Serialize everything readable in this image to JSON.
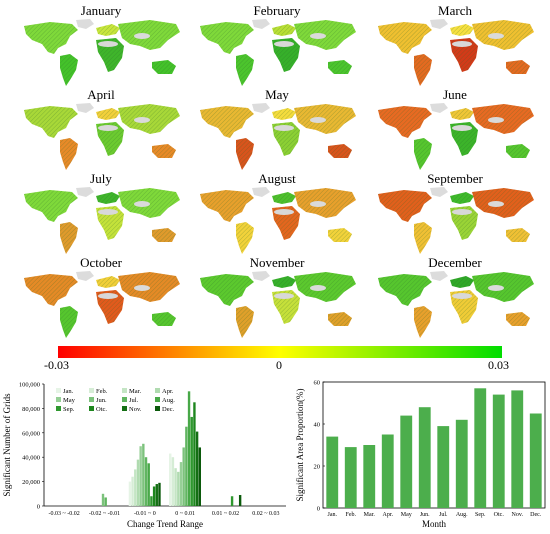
{
  "maps": {
    "months": [
      "January",
      "February",
      "March",
      "April",
      "May",
      "June",
      "July",
      "August",
      "September",
      "October",
      "November",
      "December"
    ],
    "colorbar": {
      "min_label": "-0.03",
      "mid_label": "0",
      "max_label": "0.03",
      "colors": [
        "#ff0000",
        "#ffff00",
        "#00dd00"
      ]
    }
  },
  "chart_data": [
    {
      "type": "bar",
      "xlabel": "Change Trend Range",
      "ylabel": "Significant Number of Grids",
      "ylim": [
        0,
        100000
      ],
      "yticks": [
        "0",
        "20,000",
        "40,000",
        "60,000",
        "80,000",
        "100,000"
      ],
      "xticks": [
        "-0.03 ~ -0.02",
        "-0.02 ~ -0.01",
        "-0.01 ~ 0",
        "0 ~ 0.01",
        "0.01 ~ 0.02",
        "0.02 ~ 0.03"
      ],
      "categories": [
        "-0.03 ~ -0.02",
        "-0.02 ~ -0.01",
        "-0.01 ~ 0",
        "0 ~ 0.01",
        "0.01 ~ 0.02",
        "0.02 ~ 0.03"
      ],
      "legend": [
        "Jan.",
        "Feb.",
        "Mar.",
        "Apr.",
        "May",
        "Jun.",
        "Jul.",
        "Aug.",
        "Sep.",
        "Otc.",
        "Nov.",
        "Dec."
      ],
      "legend_position": "top-left",
      "series": [
        {
          "name": "Jan.",
          "values": [
            0,
            0,
            20000,
            43000,
            0,
            0
          ]
        },
        {
          "name": "Feb.",
          "values": [
            0,
            0,
            24000,
            40000,
            0,
            0
          ]
        },
        {
          "name": "Mar.",
          "values": [
            0,
            0,
            30000,
            31000,
            0,
            0
          ]
        },
        {
          "name": "Apr.",
          "values": [
            0,
            0,
            38000,
            28000,
            0,
            0
          ]
        },
        {
          "name": "May",
          "values": [
            0,
            0,
            49000,
            36000,
            0,
            0
          ]
        },
        {
          "name": "Jun.",
          "values": [
            0,
            10000,
            51000,
            48000,
            0,
            0
          ]
        },
        {
          "name": "Jul.",
          "values": [
            0,
            7000,
            40000,
            65000,
            0,
            0
          ]
        },
        {
          "name": "Aug.",
          "values": [
            0,
            0,
            35000,
            94000,
            0,
            0
          ]
        },
        {
          "name": "Sep.",
          "values": [
            0,
            0,
            8000,
            73000,
            8000,
            0
          ]
        },
        {
          "name": "Otc.",
          "values": [
            0,
            0,
            16000,
            85000,
            0,
            0
          ]
        },
        {
          "name": "Nov.",
          "values": [
            0,
            0,
            18000,
            61000,
            0,
            0
          ]
        },
        {
          "name": "Dec.",
          "values": [
            0,
            0,
            19000,
            48000,
            9000,
            0
          ]
        }
      ],
      "colors": [
        "#e6f4e6",
        "#d6edd6",
        "#c4e5c4",
        "#b0dbb0",
        "#96cf96",
        "#7cc27c",
        "#61b561",
        "#48a848",
        "#2f982f",
        "#1e861e",
        "#146f14",
        "#0b5a0b"
      ]
    },
    {
      "type": "bar",
      "xlabel": "Month",
      "ylabel": "Significant Area Proportion(%)",
      "ylim": [
        0,
        60
      ],
      "yticks": [
        "0",
        "20",
        "40",
        "60"
      ],
      "categories": [
        "Jan.",
        "Feb.",
        "Mar.",
        "Apr.",
        "May",
        "Jun.",
        "Jul.",
        "Aug.",
        "Sep.",
        "Otc.",
        "Nov.",
        "Dec."
      ],
      "values": [
        34,
        29,
        30,
        35,
        44,
        48,
        39,
        42,
        57,
        54,
        56,
        45
      ],
      "color": "#4cae4c",
      "grid": false
    }
  ]
}
